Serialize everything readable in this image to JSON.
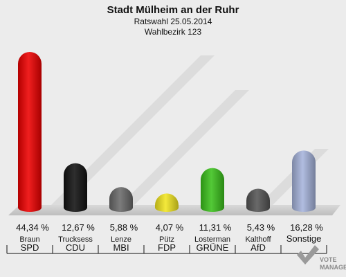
{
  "chart_data": {
    "type": "bar",
    "title": "Stadt Mülheim an der Ruhr",
    "subtitle_1": "Ratswahl 25.05.2014",
    "subtitle_2": "Wahlbezirk 123",
    "categories": [
      "SPD",
      "CDU",
      "MBI",
      "FDP",
      "GRÜNE",
      "AfD",
      "Sonstige"
    ],
    "candidates": [
      "Braun",
      "Trucksess",
      "Lenze",
      "Pütz",
      "Losterman",
      "Kalthoff",
      ""
    ],
    "values": [
      44.34,
      12.67,
      5.88,
      4.07,
      11.31,
      5.43,
      16.28
    ],
    "value_labels": [
      "44,34 %",
      "12,67 %",
      "5,88 %",
      "4,07 %",
      "11,31 %",
      "5,43 %",
      "16,28 %"
    ],
    "colors": [
      "#ee0000",
      "#111111",
      "#6a6a6a",
      "#f2e620",
      "#3cc21c",
      "#555555",
      "#a6b4dc"
    ],
    "ylim": [
      0,
      44.34
    ],
    "grid": false,
    "legend": "none"
  },
  "watermark": {
    "line1": "VOTE",
    "line2": "MANAGER"
  }
}
